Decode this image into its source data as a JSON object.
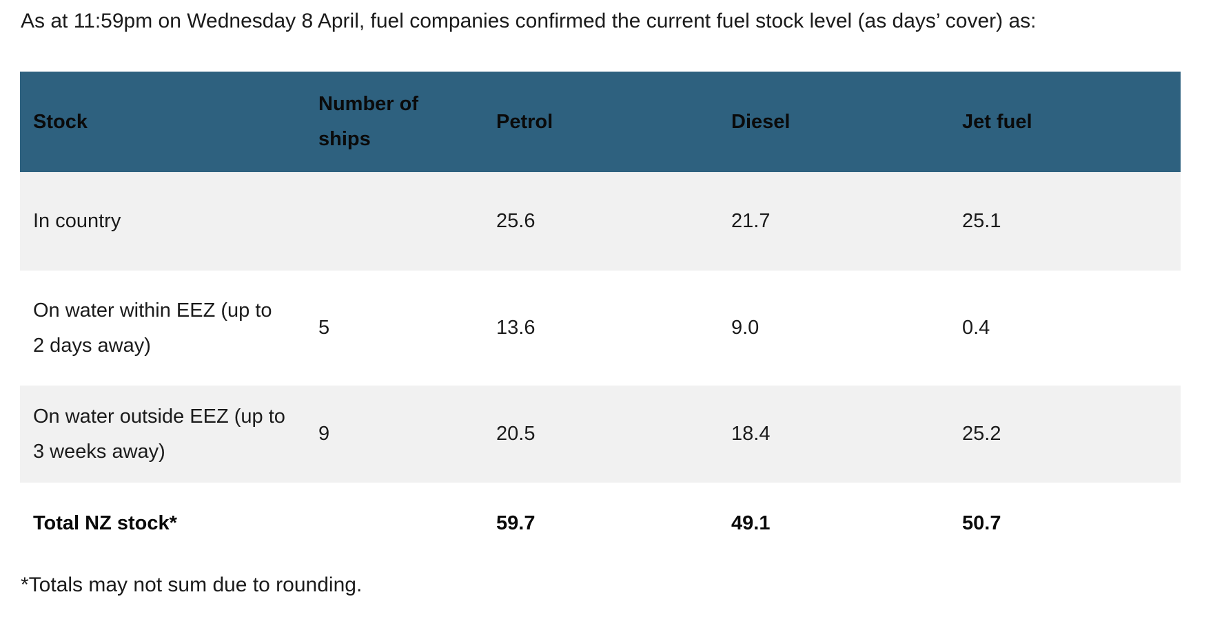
{
  "page": {
    "intro": "As at 11:59pm on Wednesday 8 April, fuel companies confirmed the current fuel stock level (as days’ cover) as:",
    "footnote": "*Totals may not sum due to rounding."
  },
  "colors": {
    "header_bg": "#2e617f",
    "shaded_row_bg": "#f1f1f1",
    "text": "#1b1b1b"
  },
  "table": {
    "columns": [
      "Stock",
      "Number of ships",
      "Petrol",
      "Diesel",
      "Jet fuel"
    ],
    "rows": [
      {
        "stock": "In country",
        "ships": "",
        "petrol": "25.6",
        "diesel": "21.7",
        "jet_fuel": "25.1"
      },
      {
        "stock": "On water within EEZ (up to 2 days away)",
        "ships": "5",
        "petrol": "13.6",
        "diesel": "9.0",
        "jet_fuel": "0.4"
      },
      {
        "stock": "On water outside EEZ (up to 3 weeks away)",
        "ships": "9",
        "petrol": "20.5",
        "diesel": "18.4",
        "jet_fuel": "25.2"
      },
      {
        "stock": "Total NZ stock*",
        "ships": "",
        "petrol": "59.7",
        "diesel": "49.1",
        "jet_fuel": "50.7"
      }
    ]
  }
}
